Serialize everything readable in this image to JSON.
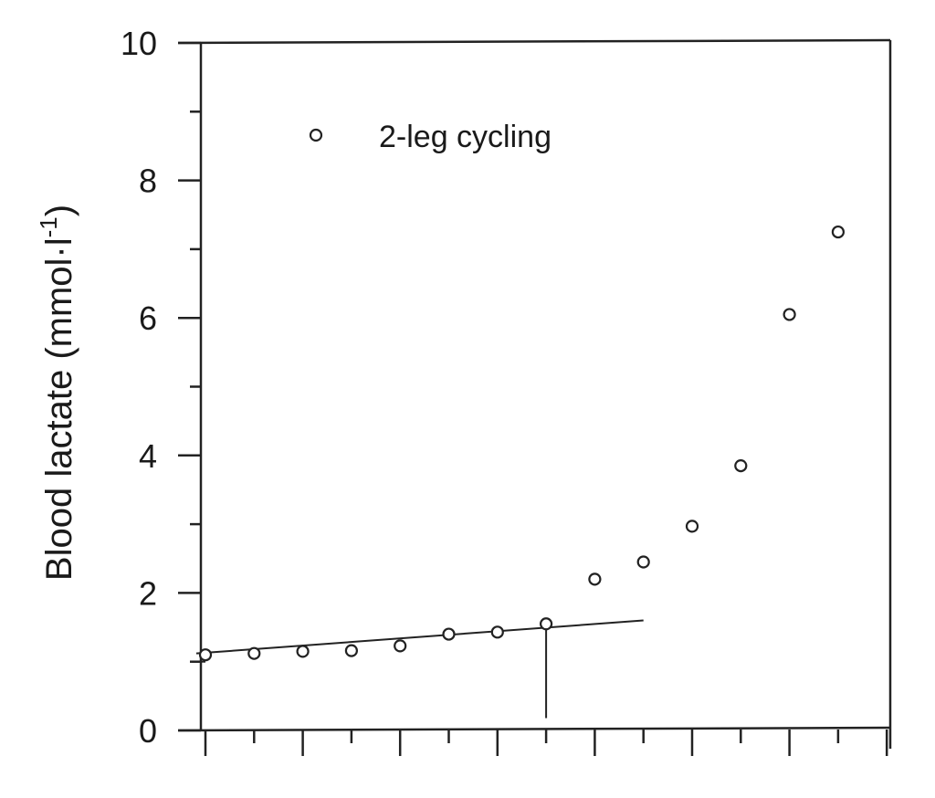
{
  "chart_data": {
    "type": "scatter",
    "title": "",
    "xlabel": "",
    "ylabel": "Blood lactate (mmol·l",
    "ylabel_superscript": "-1",
    "ylabel_close": ")",
    "ylim": [
      0,
      10
    ],
    "y_ticks": [
      0,
      2,
      4,
      6,
      8,
      10
    ],
    "y_minor_ticks": [
      1,
      3,
      5,
      7,
      9
    ],
    "x_tick_count": 14,
    "x_tick_labels": [],
    "grid": false,
    "legend_position": "top-left",
    "series": [
      {
        "name": "2-leg cycling",
        "marker": "open-circle",
        "x": [
          0,
          1,
          2,
          3,
          4,
          5,
          6,
          7,
          8,
          9,
          10,
          11,
          12,
          13
        ],
        "y": [
          1.1,
          1.12,
          1.15,
          1.16,
          1.23,
          1.4,
          1.43,
          1.55,
          2.2,
          2.45,
          2.97,
          3.85,
          6.05,
          7.25
        ]
      }
    ],
    "fit_line": {
      "x_start": 0,
      "y_start": 1.12,
      "x_end": 9,
      "y_end": 1.6
    },
    "threshold_marker": {
      "x": 7,
      "y_bottom": 0.18,
      "y_top": 1.52
    }
  }
}
